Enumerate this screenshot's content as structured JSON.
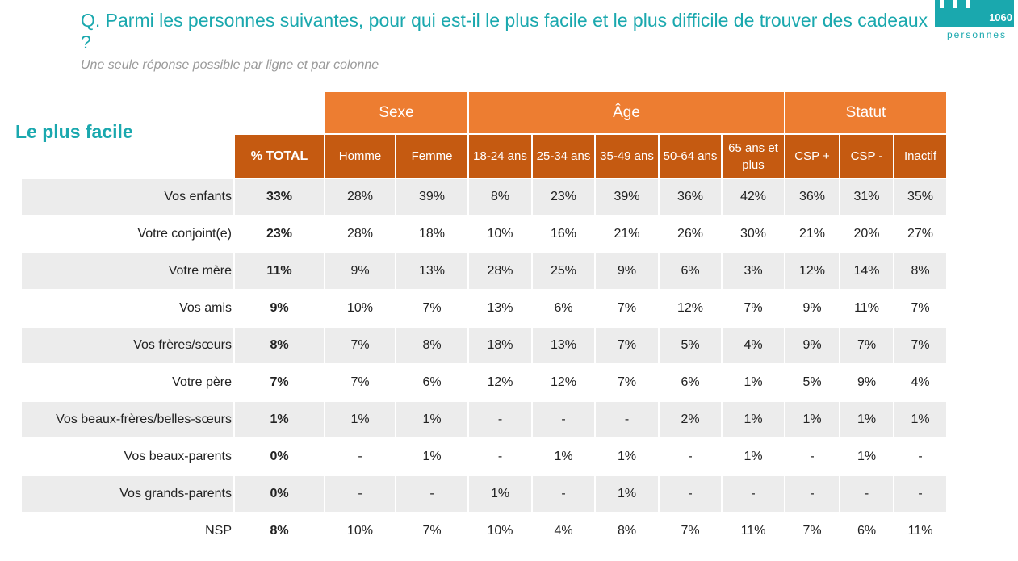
{
  "question": "Q. Parmi les personnes suivantes, pour qui est-il le plus facile et le plus difficile de trouver des cadeaux ?",
  "subtitle": "Une seule réponse possible par ligne et par colonne",
  "sample": {
    "count": "1060",
    "label": "personnes"
  },
  "section_title": "Le plus facile",
  "colors": {
    "accent": "#1aa8ae",
    "group_header": "#ed7d31",
    "sub_header": "#c55a11",
    "row_shade": "#ececec"
  },
  "table": {
    "groups": [
      "Sexe",
      "Âge",
      "Statut"
    ],
    "total_header": "% TOTAL",
    "columns": [
      "Homme",
      "Femme",
      "18-24 ans",
      "25-34 ans",
      "35-49 ans",
      "50-64 ans",
      "65 ans et plus",
      "CSP +",
      "CSP -",
      "Inactif"
    ],
    "rows": [
      {
        "label": "Vos enfants",
        "total": "33%",
        "values": [
          "28%",
          "39%",
          "8%",
          "23%",
          "39%",
          "36%",
          "42%",
          "36%",
          "31%",
          "35%"
        ]
      },
      {
        "label": "Votre conjoint(e)",
        "total": "23%",
        "values": [
          "28%",
          "18%",
          "10%",
          "16%",
          "21%",
          "26%",
          "30%",
          "21%",
          "20%",
          "27%"
        ]
      },
      {
        "label": "Votre mère",
        "total": "11%",
        "values": [
          "9%",
          "13%",
          "28%",
          "25%",
          "9%",
          "6%",
          "3%",
          "12%",
          "14%",
          "8%"
        ]
      },
      {
        "label": "Vos amis",
        "total": "9%",
        "values": [
          "10%",
          "7%",
          "13%",
          "6%",
          "7%",
          "12%",
          "7%",
          "9%",
          "11%",
          "7%"
        ]
      },
      {
        "label": "Vos frères/sœurs",
        "total": "8%",
        "values": [
          "7%",
          "8%",
          "18%",
          "13%",
          "7%",
          "5%",
          "4%",
          "9%",
          "7%",
          "7%"
        ]
      },
      {
        "label": "Votre père",
        "total": "7%",
        "values": [
          "7%",
          "6%",
          "12%",
          "12%",
          "7%",
          "6%",
          "1%",
          "5%",
          "9%",
          "4%"
        ]
      },
      {
        "label": "Vos beaux-frères/belles-sœurs",
        "total": "1%",
        "values": [
          "1%",
          "1%",
          "-",
          "-",
          "-",
          "2%",
          "1%",
          "1%",
          "1%",
          "1%"
        ]
      },
      {
        "label": "Vos beaux-parents",
        "total": "0%",
        "values": [
          "-",
          "1%",
          "-",
          "1%",
          "1%",
          "-",
          "1%",
          "-",
          "1%",
          "-"
        ]
      },
      {
        "label": "Vos grands-parents",
        "total": "0%",
        "values": [
          "-",
          "-",
          "1%",
          "-",
          "1%",
          "-",
          "-",
          "-",
          "-",
          "-"
        ]
      },
      {
        "label": "NSP",
        "total": "8%",
        "values": [
          "10%",
          "7%",
          "10%",
          "4%",
          "8%",
          "7%",
          "11%",
          "7%",
          "6%",
          "11%"
        ]
      }
    ]
  }
}
